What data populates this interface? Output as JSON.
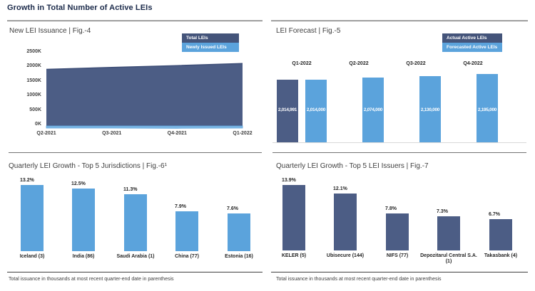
{
  "page": {
    "title": "Growth in Total Number of Active LEIs"
  },
  "colors": {
    "dark_blue": "#4C5D85",
    "light_blue": "#5BA3DC",
    "legend_dark": "#44547A",
    "area_edge": "#3D4E77",
    "strip_blue": "#7EB7E4"
  },
  "chart_data": [
    {
      "type": "area",
      "title": "New LEI Issuance | Fig.-4",
      "x": [
        "Q2-2021",
        "Q3-2021",
        "Q4-2021",
        "Q1-2022"
      ],
      "series": [
        {
          "name": "Total LEIs",
          "values": [
            1900000,
            1965000,
            2030000,
            2100000
          ]
        },
        {
          "name": "Newly Issued LEIs",
          "values": [
            55000,
            55000,
            80000,
            55000
          ]
        }
      ],
      "yticks": [
        "2500K",
        "2000K",
        "1500K",
        "1000K",
        "500K",
        "0K"
      ],
      "ylim": [
        0,
        2500000
      ],
      "legend_position": "top-right",
      "grid": false
    },
    {
      "type": "bar",
      "title": "LEI Forecast | Fig.-5",
      "categories": [
        "Q1-2022",
        "Q2-2022",
        "Q3-2022",
        "Q4-2022"
      ],
      "series": [
        {
          "name": "Actual Active LEIs",
          "values": [
            2014991,
            null,
            null,
            null
          ],
          "labels": [
            "2,014,991",
            null,
            null,
            null
          ]
        },
        {
          "name": "Forecasted Active LEIs",
          "values": [
            2014000,
            2074000,
            2130000,
            2195000
          ],
          "labels": [
            "2,014,000",
            "2,074,000",
            "2,130,000",
            "2,195,000"
          ]
        }
      ],
      "legend_position": "top-right",
      "value_labels_inside": true
    },
    {
      "type": "bar",
      "title": "Quarterly LEI Growth - Top 5 Jurisdictions | Fig.-6¹",
      "categories": [
        "Iceland (3)",
        "India (86)",
        "Saudi Arabia (1)",
        "China (77)",
        "Estonia (16)"
      ],
      "values": [
        13.2,
        12.5,
        11.3,
        7.9,
        7.6
      ],
      "labels": [
        "13.2%",
        "12.5%",
        "11.3%",
        "7.9%",
        "7.6%"
      ],
      "footnote": "Total issuance in thousands at most recent quarter-end date in parenthesis"
    },
    {
      "type": "bar",
      "title": "Quarterly LEI Growth - Top 5 LEI Issuers | Fig.-7",
      "categories": [
        "KELER (5)",
        "Ubisecure (144)",
        "NIFS (77)",
        "Depozitarul Central S.A. (1)",
        "Takasbank (4)"
      ],
      "values": [
        13.9,
        12.1,
        7.8,
        7.3,
        6.7
      ],
      "labels": [
        "13.9%",
        "12.1%",
        "7.8%",
        "7.3%",
        "6.7%"
      ],
      "footnote": "Total issuance in thousands at most recent quarter-end date in parenthesis"
    }
  ]
}
